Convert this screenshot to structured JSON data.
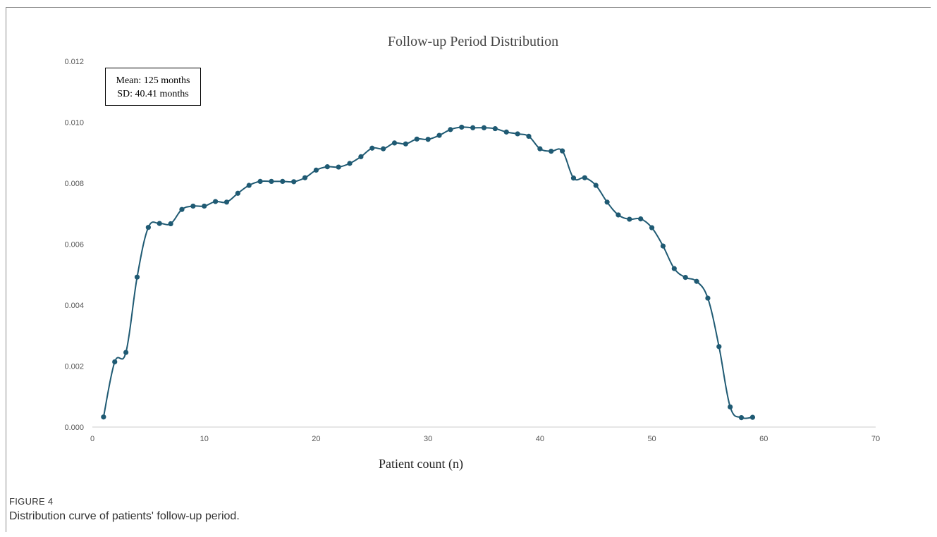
{
  "chart_data": {
    "type": "line",
    "title": "Follow-up Period Distribution",
    "xlabel": "Patient count (n)",
    "ylabel": "",
    "xlim": [
      0,
      70
    ],
    "ylim": [
      0,
      0.012
    ],
    "xticks": [
      "0",
      "10",
      "20",
      "30",
      "40",
      "50",
      "60",
      "70"
    ],
    "yticks": [
      "0.000",
      "0.002",
      "0.004",
      "0.006",
      "0.008",
      "0.010",
      "0.012"
    ],
    "grid": false,
    "legend": "none",
    "color": "#1f5a73",
    "annotation": {
      "line1": "Mean: 125 months",
      "line2": "SD: 40.41 months"
    },
    "x": [
      1,
      2,
      3,
      4,
      5,
      6,
      7,
      8,
      9,
      10,
      11,
      12,
      13,
      14,
      15,
      16,
      17,
      18,
      19,
      20,
      21,
      22,
      23,
      24,
      25,
      26,
      27,
      28,
      29,
      30,
      31,
      32,
      33,
      34,
      35,
      36,
      37,
      38,
      39,
      40,
      41,
      42,
      43,
      44,
      45,
      46,
      47,
      48,
      49,
      50,
      51,
      52,
      53,
      54,
      55,
      56,
      57,
      58,
      59
    ],
    "y": [
      0.00033,
      0.00214,
      0.00245,
      0.00492,
      0.00655,
      0.00668,
      0.00667,
      0.00714,
      0.00725,
      0.00725,
      0.0074,
      0.00738,
      0.00767,
      0.00793,
      0.00806,
      0.00806,
      0.00806,
      0.00805,
      0.00818,
      0.00843,
      0.00854,
      0.00853,
      0.00865,
      0.00887,
      0.00915,
      0.00913,
      0.00932,
      0.00929,
      0.00945,
      0.00944,
      0.00957,
      0.00976,
      0.00984,
      0.00982,
      0.00982,
      0.00979,
      0.00968,
      0.00962,
      0.00954,
      0.00913,
      0.00905,
      0.00906,
      0.00817,
      0.00818,
      0.00793,
      0.00738,
      0.00696,
      0.00682,
      0.00683,
      0.00654,
      0.00594,
      0.0052,
      0.00491,
      0.00478,
      0.00423,
      0.00264,
      0.00066,
      0.00031,
      0.00032
    ]
  },
  "figure": {
    "label": "FIGURE 4",
    "caption": "Distribution curve of patients' follow-up period."
  }
}
